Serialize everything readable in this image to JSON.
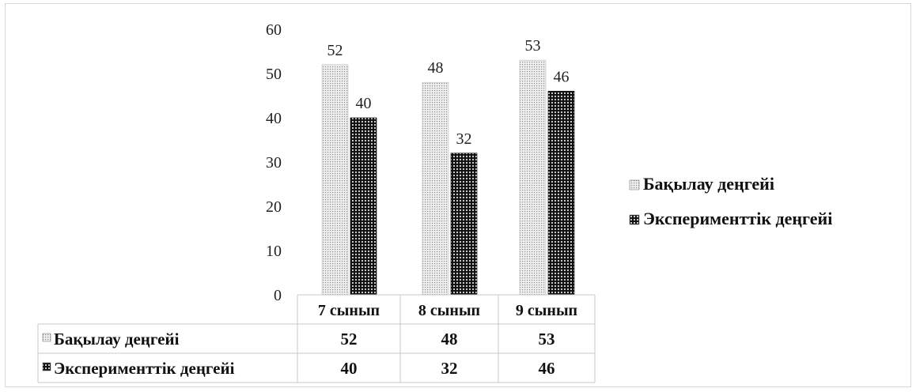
{
  "chart_data": {
    "type": "bar",
    "categories": [
      "7 сынып",
      "8 сынып",
      "9 сынып"
    ],
    "series": [
      {
        "name": "Бақылау деңгейі",
        "values": [
          52,
          48,
          53
        ]
      },
      {
        "name": "Эксперименттік деңгейі",
        "values": [
          40,
          32,
          46
        ]
      }
    ],
    "ylim": [
      0,
      60
    ],
    "yticks": [
      0,
      10,
      20,
      30,
      40,
      50,
      60
    ],
    "data_labels": true,
    "data_table": true,
    "grid": false,
    "legend_position": "right",
    "legend_labels": [
      "Бақылау деңгейі",
      "Эксперименттік  деңгейі"
    ],
    "table_row_labels": [
      "Бақылау деңгейі",
      "Эксперименттік деңгейі"
    ],
    "colors": {
      "series1_base": "#efefef",
      "series1_dots": "#8a8a8a",
      "series2_base": "#111111",
      "series2_dots": "#dddddd",
      "grid_lines": "#c8c8c8"
    }
  }
}
